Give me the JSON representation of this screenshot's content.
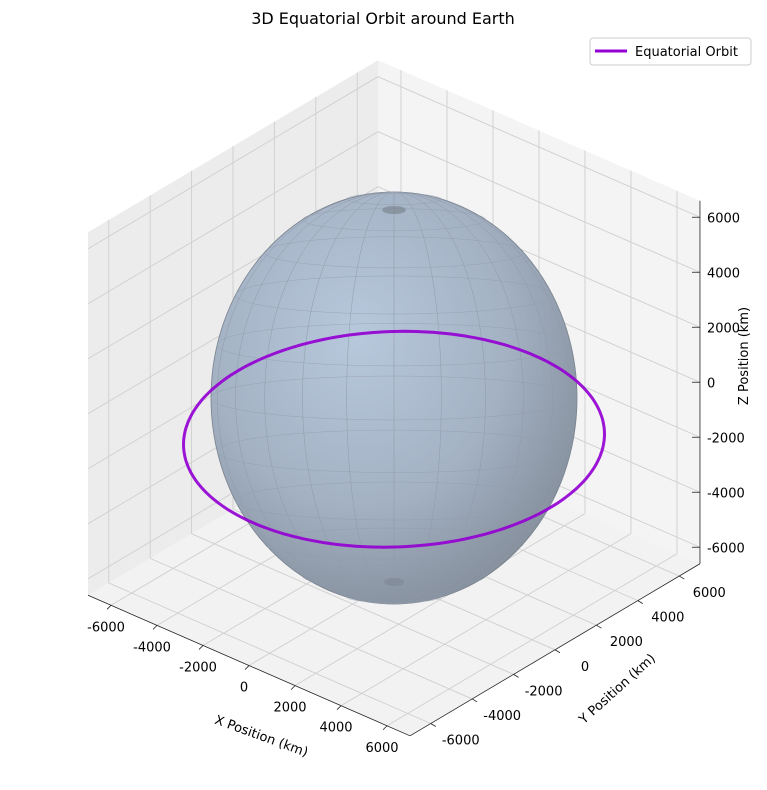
{
  "chart_data": {
    "type": "3d-surface-line",
    "title": "3D Equatorial Orbit around Earth",
    "xlabel": "X Position (km)",
    "ylabel": "Y Position (km)",
    "zlabel": "Z Position (km)",
    "x_ticks": [
      -6000,
      -4000,
      -2000,
      0,
      2000,
      4000,
      6000
    ],
    "y_ticks": [
      -6000,
      -4000,
      -2000,
      0,
      2000,
      4000,
      6000
    ],
    "z_ticks": [
      -6000,
      -4000,
      -2000,
      0,
      2000,
      4000,
      6000
    ],
    "xlim": [
      -7000,
      7000
    ],
    "ylim": [
      -7000,
      7000
    ],
    "zlim": [
      -6600,
      6600
    ],
    "grid": true,
    "legend_position": "top-right",
    "earth_radius_km": 6371,
    "orbit_radius_km": 6800,
    "orbit_altitude_km": 0,
    "series": [
      {
        "name": "Equatorial Orbit",
        "color": "#9400D3"
      }
    ],
    "sphere_color": "#b0c4de"
  }
}
